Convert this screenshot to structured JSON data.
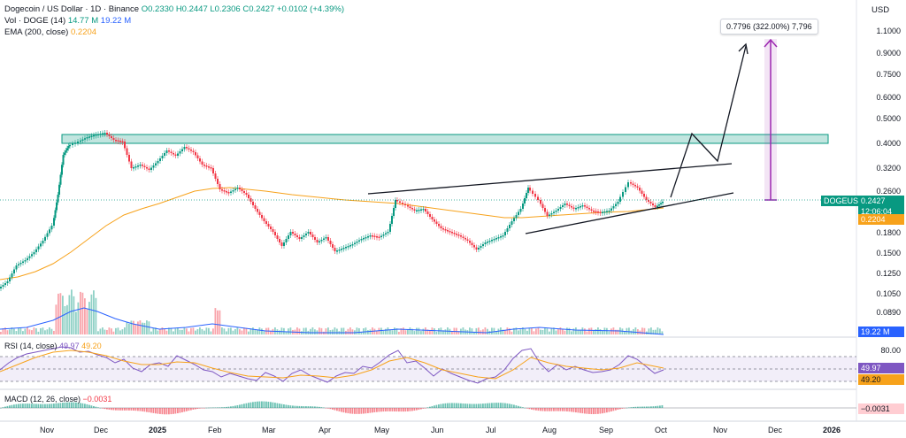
{
  "legend": {
    "title": "Dogecoin / US Dollar · 1D · Binance",
    "open": "O0.2330",
    "high": "H0.2447",
    "low": "L0.2306",
    "close": "C0.2427",
    "change": "+0.0102 (+4.39%)",
    "vol_label": "Vol · DOGE (14)",
    "vol_value1": "14.77 M",
    "vol_value2": "19.22 M",
    "ema_label": "EMA (200, close)",
    "ema_value": "0.2204"
  },
  "price_axis": {
    "currency": "USD",
    "ticks": [
      "1.1000",
      "0.9000",
      "0.7500",
      "0.6000",
      "0.5000",
      "0.4000",
      "0.3200",
      "0.2600",
      "0.1800",
      "0.1500",
      "0.1250",
      "0.1050",
      "0.0890"
    ],
    "symbol_badge": "DOGEUSD",
    "price_badge": "0.2427",
    "countdown": "12:06:04",
    "ema_badge": "0.2204",
    "vol_badge": "19.22 M"
  },
  "rsi": {
    "label": "RSI (14, close)",
    "value1": "49.97",
    "value2": "49.20",
    "tick_80": "80.00",
    "badge1": "49.97",
    "badge2": "49.20"
  },
  "macd": {
    "label": "MACD (12, 26, close)",
    "value": "−0.0031",
    "badge": "−0.0031"
  },
  "time_axis": [
    "Nov",
    "Dec",
    "2025",
    "Feb",
    "Mar",
    "Apr",
    "May",
    "Jun",
    "Jul",
    "Aug",
    "Sep",
    "Oct",
    "Nov",
    "Dec",
    "2026"
  ],
  "projection": {
    "callout": "0.7796 (322.00%) 7,796"
  },
  "colors": {
    "up": "#089981",
    "down": "#f23645",
    "ema": "#f7a21b",
    "zone": "#089981",
    "projection": "#9c27b0",
    "rsi": "#7e57c2",
    "axis_badge": "#2962ff"
  }
}
